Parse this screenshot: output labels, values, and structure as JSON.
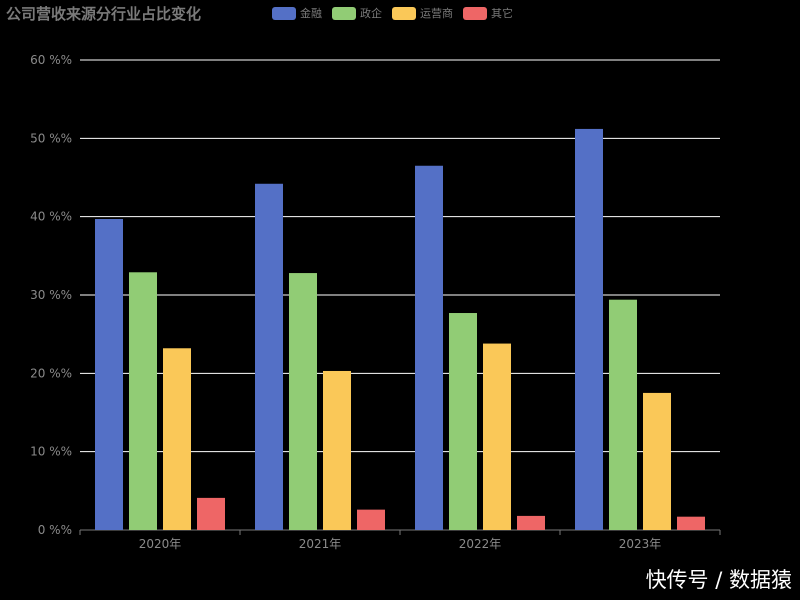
{
  "chart_data": {
    "type": "bar",
    "title": "公司营收来源分行业占比变化",
    "categories": [
      "2020年",
      "2021年",
      "2022年",
      "2023年"
    ],
    "series": [
      {
        "name": "金融",
        "color": "#5470c6",
        "values": [
          39.7,
          44.2,
          46.5,
          51.2
        ]
      },
      {
        "name": "政企",
        "color": "#91cc75",
        "values": [
          32.9,
          32.8,
          27.7,
          29.4
        ]
      },
      {
        "name": "运营商",
        "color": "#fac858",
        "values": [
          23.2,
          20.3,
          23.8,
          17.5
        ]
      },
      {
        "name": "其它",
        "color": "#ee6666",
        "values": [
          4.1,
          2.6,
          1.8,
          1.7
        ]
      }
    ],
    "yticks": [
      "0 %%",
      "10 %%",
      "20 %%",
      "30 %%",
      "40 %%",
      "50 %%",
      "60 %%"
    ],
    "ylim": [
      0,
      60
    ],
    "grid": true,
    "legend_position": "top"
  },
  "watermark": "快传号 / 数据猿"
}
